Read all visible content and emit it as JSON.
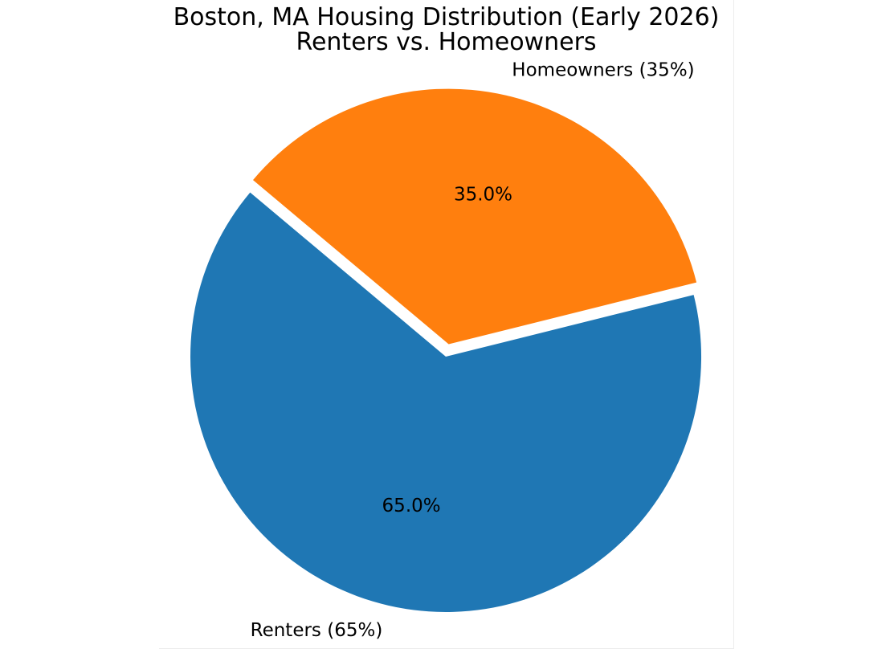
{
  "figure": {
    "title_line1": "Boston, MA Housing Distribution (Early 2026)",
    "title_line2": "Renters vs. Homeowners"
  },
  "chart_data": {
    "type": "pie",
    "title": "Boston, MA Housing Distribution (Early 2026)\nRenters vs. Homeowners",
    "categories": [
      "Renters",
      "Homeowners"
    ],
    "values": [
      65,
      35
    ],
    "slices": [
      {
        "name": "Renters",
        "label": "Renters (65%)",
        "value": 65,
        "pct_label": "65.0%",
        "color": "#1f77b4",
        "explode": 0
      },
      {
        "name": "Homeowners",
        "label": "Homeowners (35%)",
        "value": 35,
        "pct_label": "35.0%",
        "color": "#ff7f0e",
        "explode": 0.05
      }
    ],
    "start_angle": 140,
    "counterclock": true,
    "legend": "none",
    "background_color": "#ffffff",
    "text_color": "#000000"
  }
}
